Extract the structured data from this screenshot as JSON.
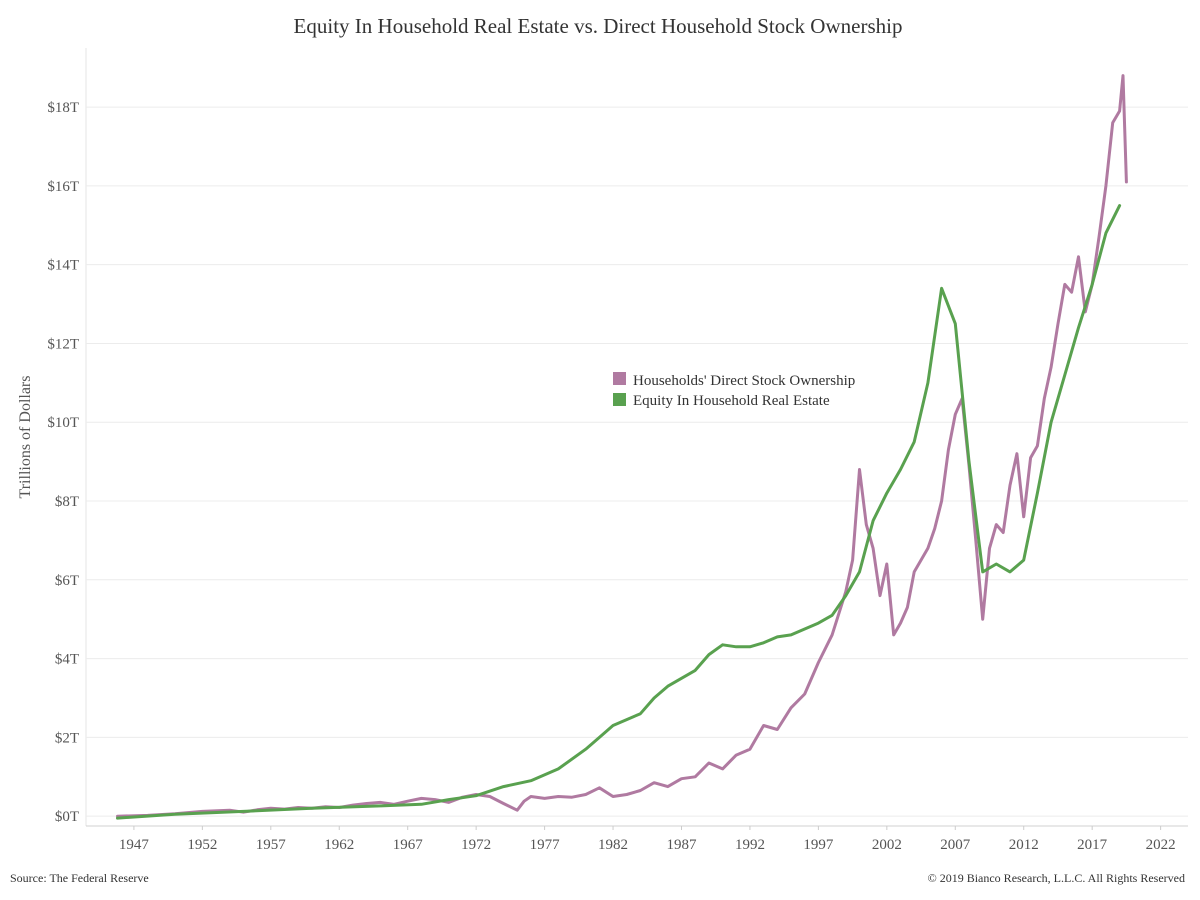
{
  "chart_data": {
    "type": "line",
    "title": "Equity In Household Real Estate vs. Direct Household Stock Ownership",
    "xlabel": "",
    "ylabel": "Trillions of Dollars",
    "xlim": [
      1943.5,
      2024
    ],
    "ylim": [
      -0.25,
      19.5
    ],
    "x_ticks": [
      1947,
      1952,
      1957,
      1962,
      1967,
      1972,
      1977,
      1982,
      1987,
      1992,
      1997,
      2002,
      2007,
      2012,
      2017,
      2022
    ],
    "y_ticks": [
      0,
      2,
      4,
      6,
      8,
      10,
      12,
      14,
      16,
      18
    ],
    "y_tick_labels": [
      "$0T",
      "$2T",
      "$4T",
      "$6T",
      "$8T",
      "$10T",
      "$12T",
      "$14T",
      "$16T",
      "$18T"
    ],
    "grid": "horizontal",
    "legend_position": "center-right",
    "series": [
      {
        "name": "Households' Direct Stock Ownership",
        "color": "#b07aa1",
        "points": [
          [
            1945.8,
            0.0
          ],
          [
            1948,
            0.02
          ],
          [
            1950,
            0.06
          ],
          [
            1952,
            0.12
          ],
          [
            1954,
            0.15
          ],
          [
            1955,
            0.1
          ],
          [
            1956,
            0.16
          ],
          [
            1957,
            0.2
          ],
          [
            1958,
            0.18
          ],
          [
            1959,
            0.22
          ],
          [
            1960,
            0.2
          ],
          [
            1961,
            0.24
          ],
          [
            1962,
            0.22
          ],
          [
            1963,
            0.28
          ],
          [
            1964,
            0.32
          ],
          [
            1965,
            0.35
          ],
          [
            1966,
            0.3
          ],
          [
            1967,
            0.38
          ],
          [
            1968,
            0.45
          ],
          [
            1969,
            0.42
          ],
          [
            1970,
            0.35
          ],
          [
            1971,
            0.48
          ],
          [
            1972,
            0.55
          ],
          [
            1973,
            0.5
          ],
          [
            1974,
            0.32
          ],
          [
            1975,
            0.15
          ],
          [
            1975.5,
            0.38
          ],
          [
            1976,
            0.5
          ],
          [
            1977,
            0.45
          ],
          [
            1978,
            0.5
          ],
          [
            1979,
            0.48
          ],
          [
            1980,
            0.55
          ],
          [
            1981,
            0.72
          ],
          [
            1982,
            0.5
          ],
          [
            1983,
            0.55
          ],
          [
            1984,
            0.65
          ],
          [
            1985,
            0.85
          ],
          [
            1986,
            0.75
          ],
          [
            1987,
            0.95
          ],
          [
            1988,
            1.0
          ],
          [
            1989,
            1.35
          ],
          [
            1990,
            1.2
          ],
          [
            1991,
            1.55
          ],
          [
            1992,
            1.7
          ],
          [
            1993,
            2.3
          ],
          [
            1994,
            2.2
          ],
          [
            1995,
            2.75
          ],
          [
            1996,
            3.1
          ],
          [
            1997,
            3.9
          ],
          [
            1998,
            4.6
          ],
          [
            1999,
            5.7
          ],
          [
            1999.5,
            6.5
          ],
          [
            2000,
            8.8
          ],
          [
            2000.5,
            7.4
          ],
          [
            2001,
            6.8
          ],
          [
            2001.5,
            5.6
          ],
          [
            2002,
            6.4
          ],
          [
            2002.5,
            4.6
          ],
          [
            2003,
            4.9
          ],
          [
            2003.5,
            5.3
          ],
          [
            2004,
            6.2
          ],
          [
            2005,
            6.8
          ],
          [
            2005.5,
            7.3
          ],
          [
            2006,
            8.0
          ],
          [
            2006.5,
            9.3
          ],
          [
            2007,
            10.2
          ],
          [
            2007.5,
            10.6
          ],
          [
            2008,
            8.9
          ],
          [
            2008.5,
            7.0
          ],
          [
            2009,
            5.0
          ],
          [
            2009.5,
            6.8
          ],
          [
            2010,
            7.4
          ],
          [
            2010.5,
            7.2
          ],
          [
            2011,
            8.4
          ],
          [
            2011.5,
            9.2
          ],
          [
            2012,
            7.6
          ],
          [
            2012.5,
            9.1
          ],
          [
            2013,
            9.4
          ],
          [
            2013.5,
            10.6
          ],
          [
            2014,
            11.4
          ],
          [
            2014.5,
            12.5
          ],
          [
            2015,
            13.5
          ],
          [
            2015.5,
            13.3
          ],
          [
            2016,
            14.2
          ],
          [
            2016.5,
            12.8
          ],
          [
            2017,
            13.5
          ],
          [
            2017.5,
            14.7
          ],
          [
            2018,
            16.0
          ],
          [
            2018.5,
            17.6
          ],
          [
            2019,
            17.9
          ],
          [
            2019.25,
            18.8
          ],
          [
            2019.5,
            16.1
          ]
        ]
      },
      {
        "name": "Equity In Household Real Estate",
        "color": "#59a14f",
        "points": [
          [
            1945.8,
            -0.05
          ],
          [
            1950,
            0.05
          ],
          [
            1955,
            0.12
          ],
          [
            1960,
            0.2
          ],
          [
            1965,
            0.26
          ],
          [
            1968,
            0.3
          ],
          [
            1970,
            0.42
          ],
          [
            1972,
            0.52
          ],
          [
            1974,
            0.75
          ],
          [
            1976,
            0.9
          ],
          [
            1978,
            1.2
          ],
          [
            1980,
            1.7
          ],
          [
            1981,
            2.0
          ],
          [
            1982,
            2.3
          ],
          [
            1983,
            2.45
          ],
          [
            1984,
            2.6
          ],
          [
            1985,
            3.0
          ],
          [
            1986,
            3.3
          ],
          [
            1987,
            3.5
          ],
          [
            1988,
            3.7
          ],
          [
            1989,
            4.1
          ],
          [
            1990,
            4.35
          ],
          [
            1991,
            4.3
          ],
          [
            1992,
            4.3
          ],
          [
            1993,
            4.4
          ],
          [
            1994,
            4.55
          ],
          [
            1995,
            4.6
          ],
          [
            1996,
            4.75
          ],
          [
            1997,
            4.9
          ],
          [
            1998,
            5.1
          ],
          [
            1999,
            5.6
          ],
          [
            2000,
            6.2
          ],
          [
            2001,
            7.5
          ],
          [
            2002,
            8.2
          ],
          [
            2003,
            8.8
          ],
          [
            2004,
            9.5
          ],
          [
            2005,
            11.0
          ],
          [
            2006,
            13.4
          ],
          [
            2007,
            12.5
          ],
          [
            2008,
            9.0
          ],
          [
            2009,
            6.2
          ],
          [
            2010,
            6.4
          ],
          [
            2011,
            6.2
          ],
          [
            2012,
            6.5
          ],
          [
            2013,
            8.2
          ],
          [
            2014,
            10.0
          ],
          [
            2015,
            11.2
          ],
          [
            2016,
            12.4
          ],
          [
            2017,
            13.5
          ],
          [
            2018,
            14.8
          ],
          [
            2019,
            15.5
          ]
        ]
      }
    ]
  },
  "footer": {
    "source": "Source: The Federal Reserve",
    "copyright": "© 2019 Bianco Research, L.L.C. All Rights Reserved"
  }
}
